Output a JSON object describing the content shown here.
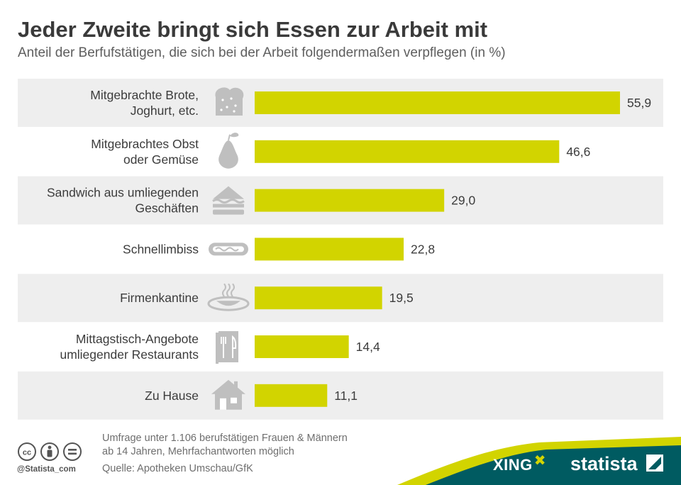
{
  "title": "Jeder Zweite bringt sich Essen zur Arbeit mit",
  "subtitle": "Anteil der Berfufstätigen, die sich bei der Arbeit folgendermaßen verpflegen (in %)",
  "chart_data": {
    "type": "bar",
    "orientation": "horizontal",
    "categories": [
      [
        "Mitgebrachte Brote,",
        "Joghurt, etc."
      ],
      [
        "Mitgebrachtes Obst",
        "oder Gemüse"
      ],
      [
        "Sandwich aus umliegenden",
        "Geschäften"
      ],
      [
        "Schnellimbiss"
      ],
      [
        "Firmenkantine"
      ],
      [
        "Mittagstisch-Angebote",
        "umliegender Restaurants"
      ],
      [
        "Zu Hause"
      ]
    ],
    "values": [
      55.9,
      46.6,
      29.0,
      22.8,
      19.5,
      14.4,
      11.1
    ],
    "value_labels": [
      "55,9",
      "46,6",
      "29,0",
      "22,8",
      "19,5",
      "14,4",
      "11,1"
    ],
    "icons": [
      "bread-icon",
      "pear-icon",
      "sandwich-icon",
      "hotdog-icon",
      "soup-bowl-icon",
      "menu-cutlery-icon",
      "house-icon"
    ],
    "xlim": [
      0,
      55.9
    ],
    "bar_color": "#d2d400",
    "row_band_color": "#eeeeee",
    "grid": false,
    "legend": "none"
  },
  "footer": {
    "note_line1": "Umfrage unter 1.106 berufstätigen Frauen & Männern",
    "note_line2": "ab 14 Jahren, Mehrfachantworten möglich",
    "source": "Quelle: Apotheken Umschau/GfK",
    "handle": "@Statista_com",
    "cc_icons": [
      "cc-icon",
      "by-person-icon",
      "nd-equal-icon"
    ]
  },
  "brand": {
    "xing": "XING",
    "statista": "statista",
    "band_color": "#005b61",
    "accent_color": "#d2d400"
  }
}
